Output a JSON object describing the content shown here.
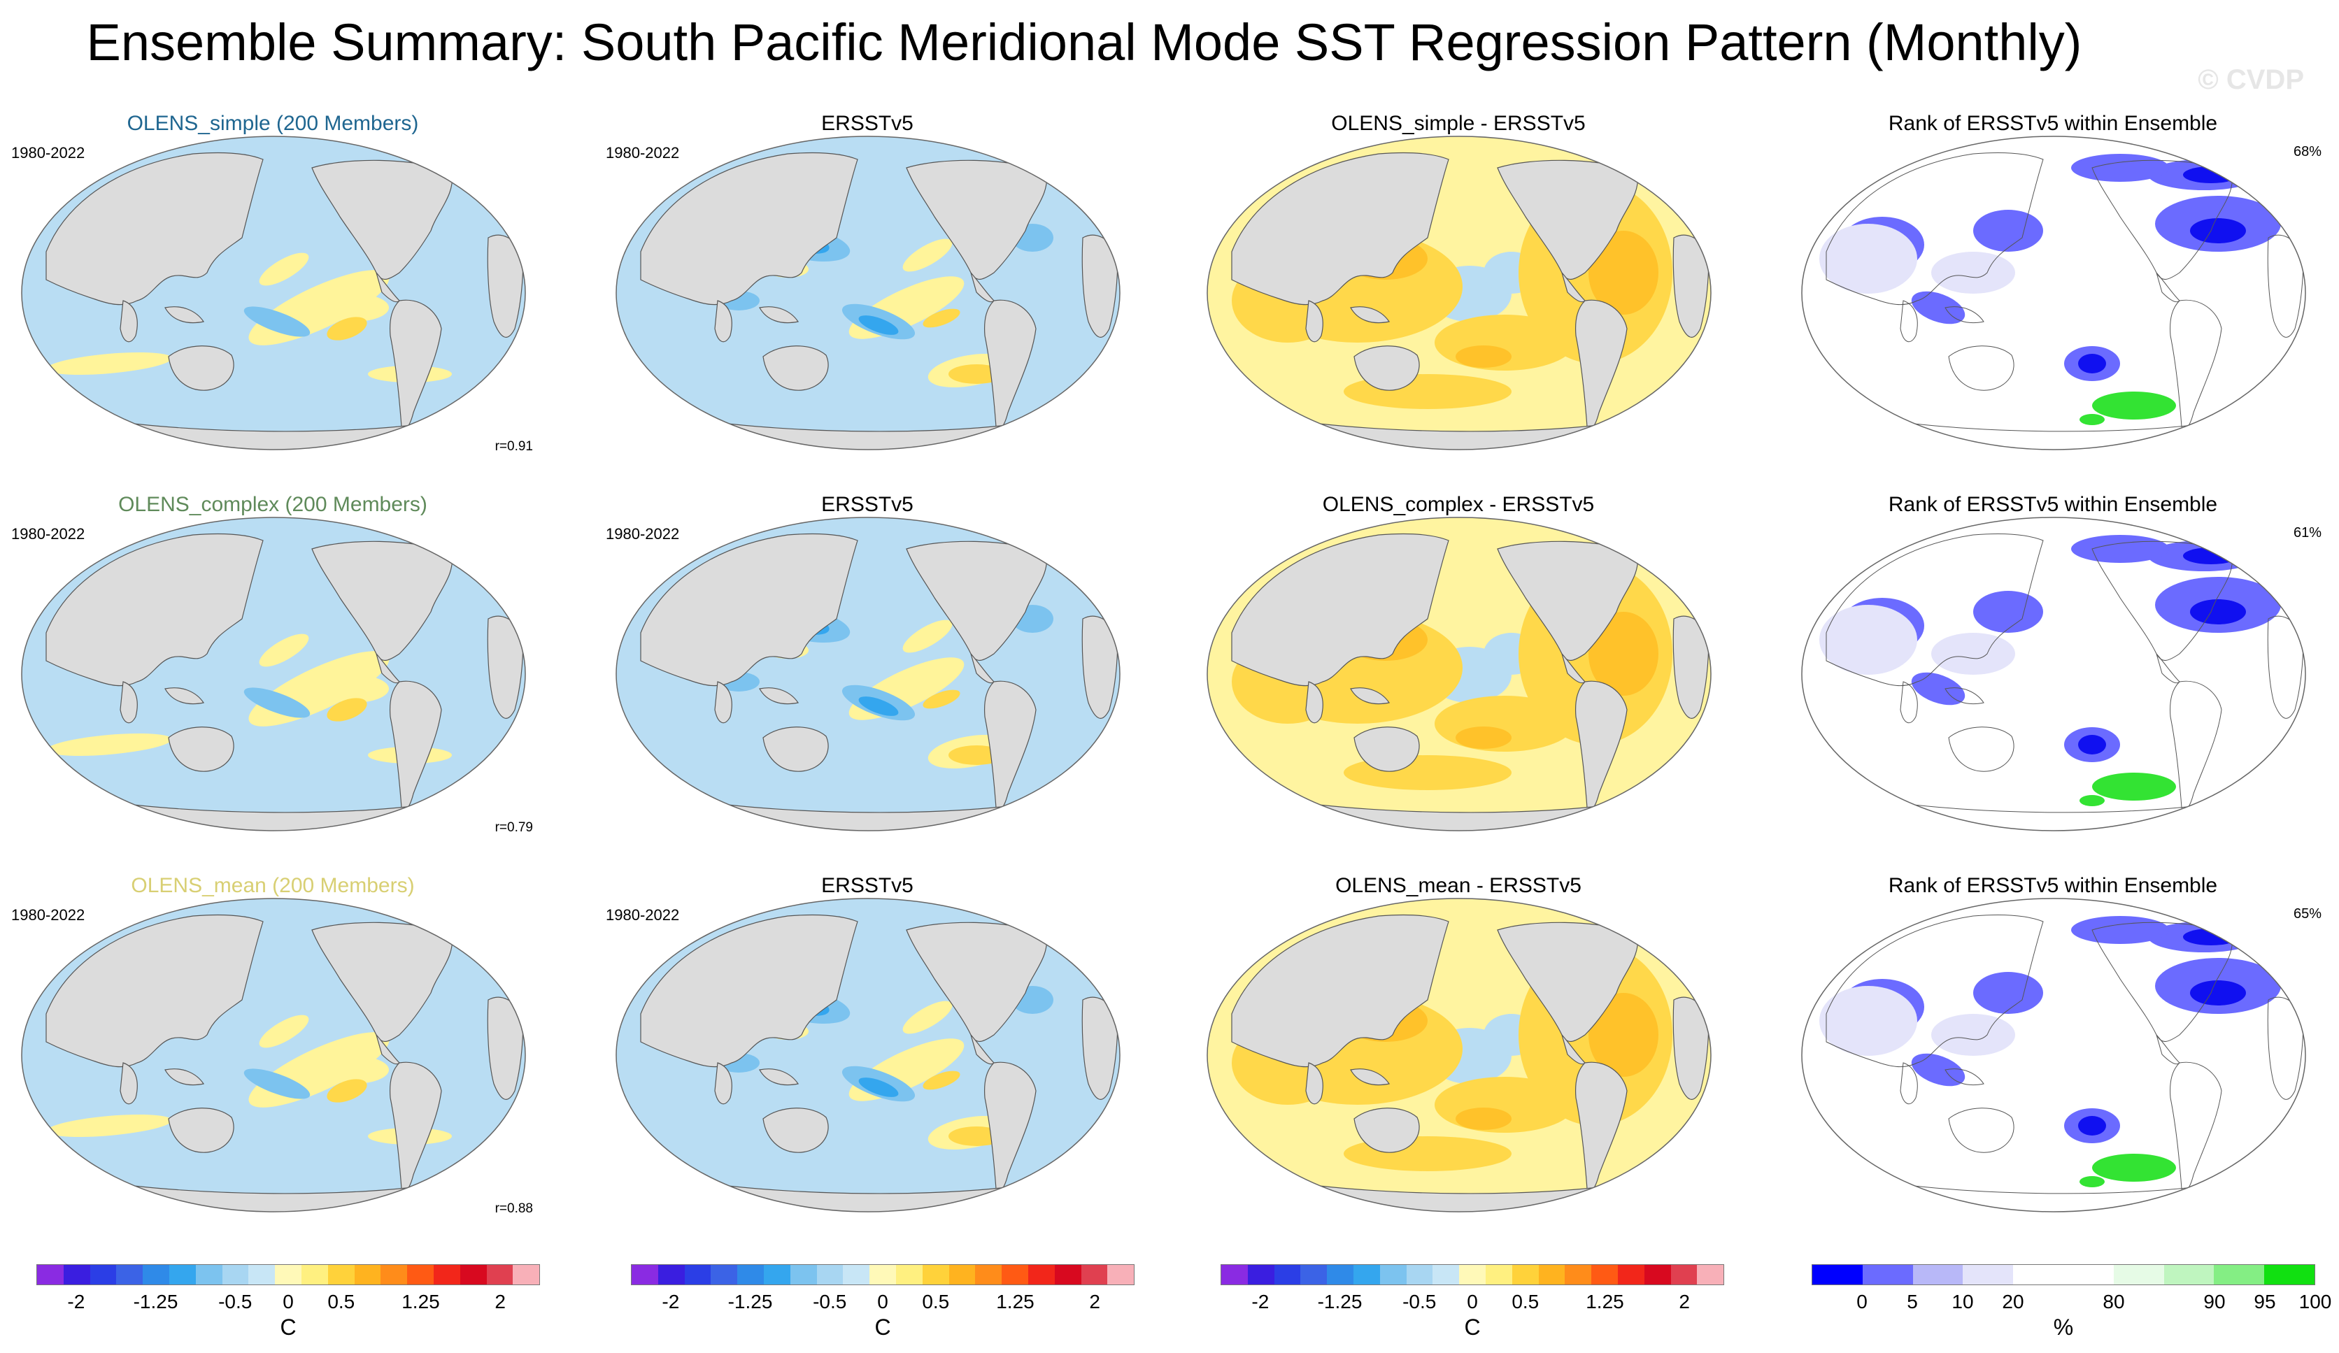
{
  "page": {
    "title": "Ensemble Summary: South Pacific Meridional Mode SST Regression Pattern (Monthly)",
    "copyright": "© CVDP"
  },
  "colors": {
    "land": "#dcdcdc",
    "ocean_neg": "#b9ddf3",
    "ocean_pos": "#fff4a0",
    "rank_base": "#ffffff"
  },
  "rows": [
    {
      "ensemble": {
        "title": "OLENS_simple (200 Members)",
        "title_color": "#1f6690",
        "period": "1980-2022",
        "r": "r=0.91"
      },
      "obs": {
        "title": "ERSSTv5",
        "period": "1980-2022"
      },
      "diff": {
        "title": "OLENS_simple - ERSSTv5"
      },
      "rank": {
        "title": "Rank of ERSSTv5 within Ensemble",
        "pct": "68%"
      }
    },
    {
      "ensemble": {
        "title": "OLENS_complex (200 Members)",
        "title_color": "#5f8a5a",
        "period": "1980-2022",
        "r": "r=0.79"
      },
      "obs": {
        "title": "ERSSTv5",
        "period": "1980-2022"
      },
      "diff": {
        "title": "OLENS_complex - ERSSTv5"
      },
      "rank": {
        "title": "Rank of ERSSTv5 within Ensemble",
        "pct": "61%"
      }
    },
    {
      "ensemble": {
        "title": "OLENS_mean (200 Members)",
        "title_color": "#d8cf73",
        "period": "1980-2022",
        "r": "r=0.88"
      },
      "obs": {
        "title": "ERSSTv5",
        "period": "1980-2022"
      },
      "diff": {
        "title": "OLENS_mean - ERSSTv5"
      },
      "rank": {
        "title": "Rank of ERSSTv5 within Ensemble",
        "pct": "65%"
      }
    }
  ],
  "colorbars": {
    "sst": {
      "colors": [
        "#8a2be2",
        "#3a1ee0",
        "#2b3ee6",
        "#3b63e6",
        "#2f8ae8",
        "#34a6ee",
        "#7cc3ef",
        "#a8d6f2",
        "#c8e6f6",
        "#fff9b8",
        "#fff080",
        "#ffd23a",
        "#ffb31f",
        "#ff8c1a",
        "#ff5a14",
        "#f2261a",
        "#d8091f",
        "#e04050",
        "#f8b0b8"
      ],
      "ticks": [
        "-2",
        "-1.25",
        "-0.5",
        "0",
        "0.5",
        "1.25",
        "2"
      ],
      "unit": "C"
    },
    "rank": {
      "colors": [
        "#0000ff",
        "#6b6bff",
        "#b8b8f8",
        "#e4e4fa",
        "#ffffff",
        "#ffffff",
        "#e6fbe6",
        "#bff5bf",
        "#84ee84",
        "#11e011"
      ],
      "ticks": [
        "0",
        "5",
        "10",
        "20",
        "80",
        "90",
        "95",
        "100"
      ],
      "unit": "%"
    }
  }
}
